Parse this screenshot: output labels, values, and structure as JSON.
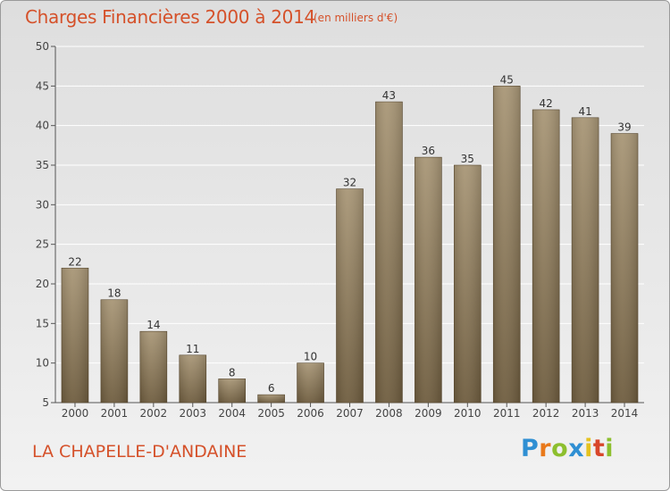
{
  "chart_data": {
    "type": "bar",
    "title": "Charges Financières 2000 à 2014",
    "subtitle": "(en milliers d'€)",
    "categories": [
      "2000",
      "2001",
      "2002",
      "2003",
      "2004",
      "2005",
      "2006",
      "2007",
      "2008",
      "2009",
      "2010",
      "2011",
      "2012",
      "2013",
      "2014"
    ],
    "values": [
      22,
      18,
      14,
      11,
      8,
      6,
      10,
      32,
      43,
      36,
      35,
      45,
      42,
      41,
      39
    ],
    "ylim": [
      5,
      50
    ],
    "yticks": [
      5,
      10,
      15,
      20,
      25,
      30,
      35,
      40,
      45,
      50
    ],
    "grid": "horizontal",
    "bar_color_top": "#a89676",
    "bar_color_bottom": "#6e5c3e",
    "title_color": "#d5512a"
  },
  "footer": {
    "commune": "LA CHAPELLE-D'ANDAINE",
    "logo_letters": [
      "P",
      "r",
      "o",
      "x",
      "i",
      "t",
      "i"
    ]
  }
}
